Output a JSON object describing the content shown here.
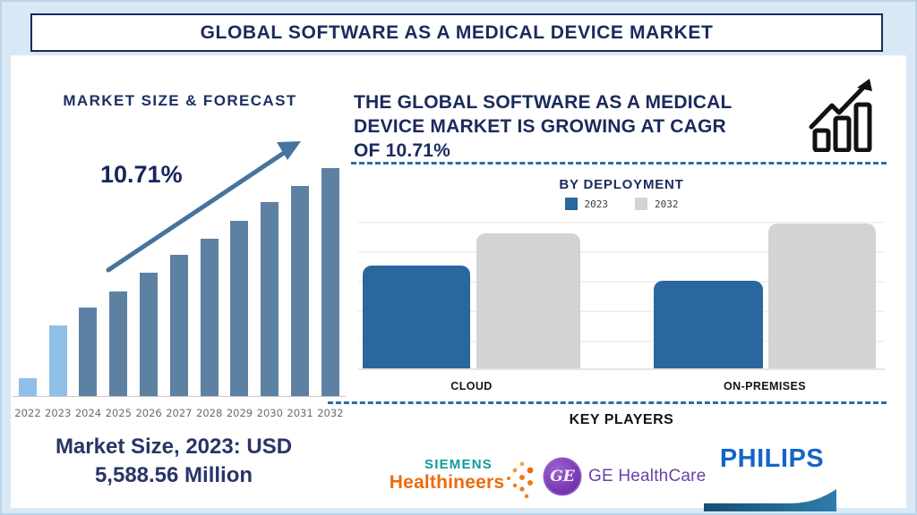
{
  "title": "GLOBAL SOFTWARE AS A MEDICAL DEVICE MARKET",
  "colors": {
    "background": "#d9e8f5",
    "navy_text": "#1b2a5c",
    "forecast_bar_default": "#5d81a3",
    "forecast_bar_highlight": "#8fbfe8",
    "trend_arrow": "#44749f",
    "deployment_2023": "#2a679e",
    "deployment_2032": "#d2d3d4",
    "dashed_separator": "#2d6f9b",
    "siemens_teal": "#0d9d9d",
    "siemens_orange": "#ec6b0e",
    "ge_purple": "#7a3bb4",
    "philips_blue": "#1465c8"
  },
  "forecast": {
    "heading": "MARKET SIZE & FORECAST",
    "cagr_label": "10.71%",
    "note_line1": "Market Size, 2023: USD",
    "note_line2": "5,588.56 Million"
  },
  "growth_statement": {
    "lines": [
      "THE GLOBAL SOFTWARE AS A MEDICAL",
      "DEVICE MARKET IS GROWING AT CAGR",
      "OF 10.71%"
    ]
  },
  "deployment": {
    "heading": "BY DEPLOYMENT"
  },
  "key_players": {
    "heading": "KEY PLAYERS",
    "siemens": {
      "line1": "SIEMENS",
      "line2": "Healthineers"
    },
    "ge": {
      "monogram": "GE",
      "label": "GE HealthCare"
    },
    "philips": {
      "label": "PHILIPS"
    }
  },
  "chart_data": [
    {
      "type": "bar",
      "title": "MARKET SIZE & FORECAST",
      "categories": [
        "2022",
        "2023",
        "2024",
        "2025",
        "2026",
        "2027",
        "2028",
        "2029",
        "2030",
        "2031",
        "2032"
      ],
      "values": [
        8,
        31,
        39,
        46,
        54,
        62,
        69,
        77,
        85,
        92,
        100
      ],
      "units": "relative bar height, % of 2032 bar (no value axis shown)",
      "annotations": [
        "CAGR 10.71%",
        "Market Size, 2023: USD 5,588.56 Million"
      ],
      "highlight": {
        "years": [
          "2022",
          "2023"
        ],
        "color": "#8fbfe8"
      },
      "bar_color": "#5d81a3",
      "xlabel": "",
      "ylabel": "",
      "grid": false,
      "legend_position": "none"
    },
    {
      "type": "bar",
      "title": "BY DEPLOYMENT",
      "categories": [
        "CLOUD",
        "ON-PREMISES"
      ],
      "series": [
        {
          "name": "2023",
          "values": [
            70,
            60
          ],
          "color": "#2a679e"
        },
        {
          "name": "2032",
          "values": [
            92,
            99
          ],
          "color": "#d2d3d4"
        }
      ],
      "units": "relative bar height, % of chart area (no value axis shown)",
      "xlabel": "",
      "ylabel": "",
      "grid": true,
      "legend_position": "top"
    }
  ]
}
